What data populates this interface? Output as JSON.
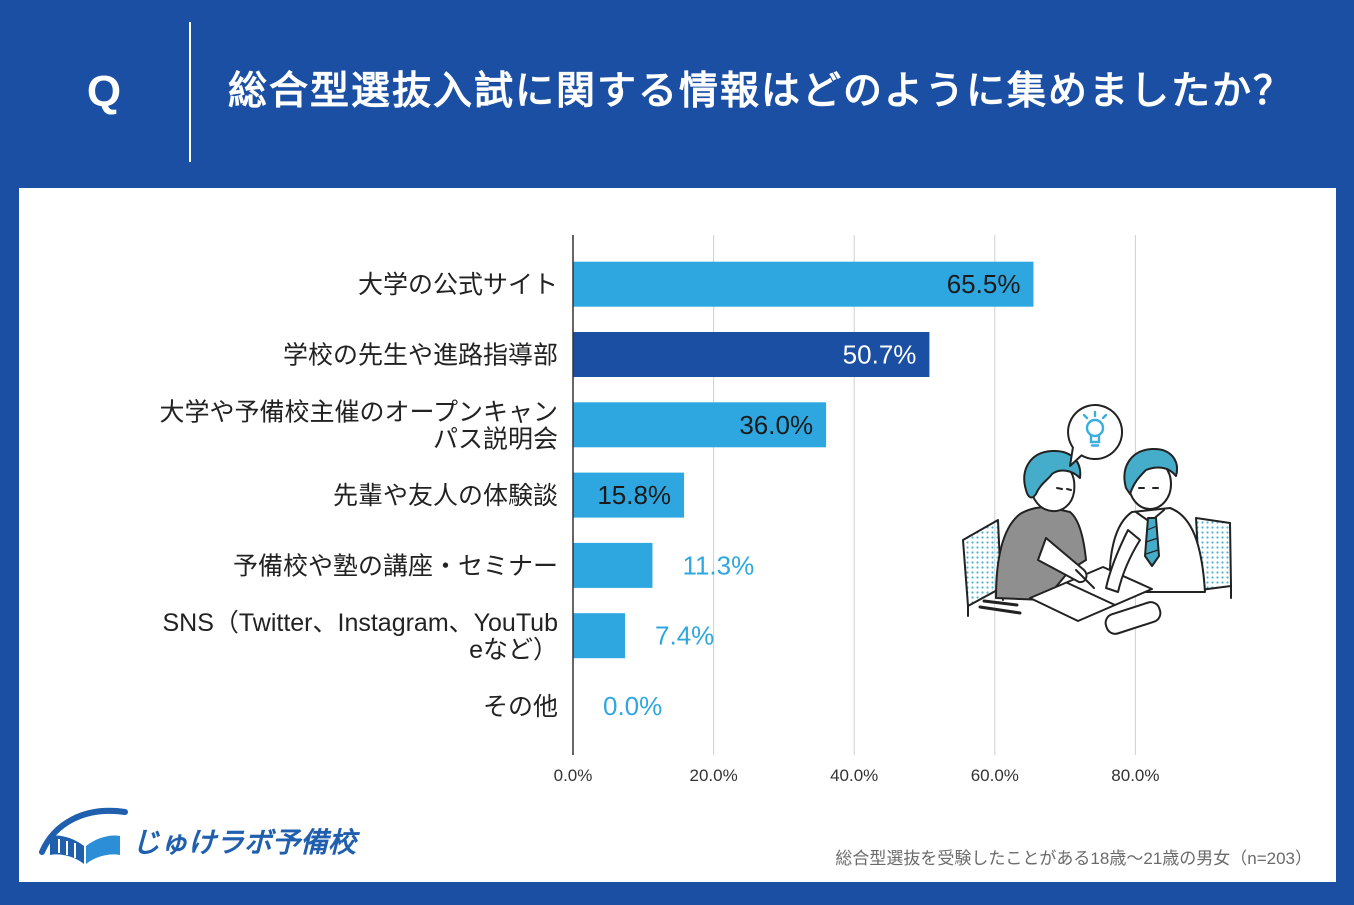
{
  "header": {
    "q_label": "Q"
  },
  "chart_data": {
    "type": "bar",
    "title": "総合型選抜入試に関する情報はどのように集めましたか？",
    "categories": [
      [
        "大学の公式サイト"
      ],
      [
        "学校の先生や進路指導部"
      ],
      [
        "大学や予備校主催のオープンキャン",
        "パス説明会"
      ],
      [
        "先輩や友人の体験談"
      ],
      [
        "予備校や塾の講座・セミナー"
      ],
      [
        "SNS（Twitter、Instagram、YouTub",
        "eなど）"
      ],
      [
        "その他"
      ]
    ],
    "values": [
      65.5,
      50.7,
      36.0,
      15.8,
      11.3,
      7.4,
      0.0
    ],
    "value_labels": [
      "65.5%",
      "50.7%",
      "36.0%",
      "15.8%",
      "11.3%",
      "7.4%",
      "0.0%"
    ],
    "highlight_index": 1,
    "xlim": [
      0,
      100
    ],
    "xticks": [
      0,
      20,
      40,
      60,
      80
    ],
    "xtick_labels": [
      "0.0%",
      "20.0%",
      "40.0%",
      "60.0%",
      "80.0%"
    ],
    "grid": true,
    "note": "総合型選抜を受験したことがある18歳～21歳の男女（n=203）"
  },
  "brand": {
    "logo_text": "じゅけラボ予備校",
    "logo_icon": "book-icon"
  },
  "illustration": {
    "icon": "students-studying-icon",
    "bubble_icon": "lightbulb-icon"
  },
  "colors": {
    "background": "#1b4fa3",
    "bar": "#2ea7e0",
    "highlight_bar": "#1b4fa3",
    "label_outside": "#2ea7e0",
    "label_on_light": "#1a1a1a",
    "label_on_dark": "#ffffff",
    "brand": "#1f5fae",
    "hair": "#45adc9"
  }
}
